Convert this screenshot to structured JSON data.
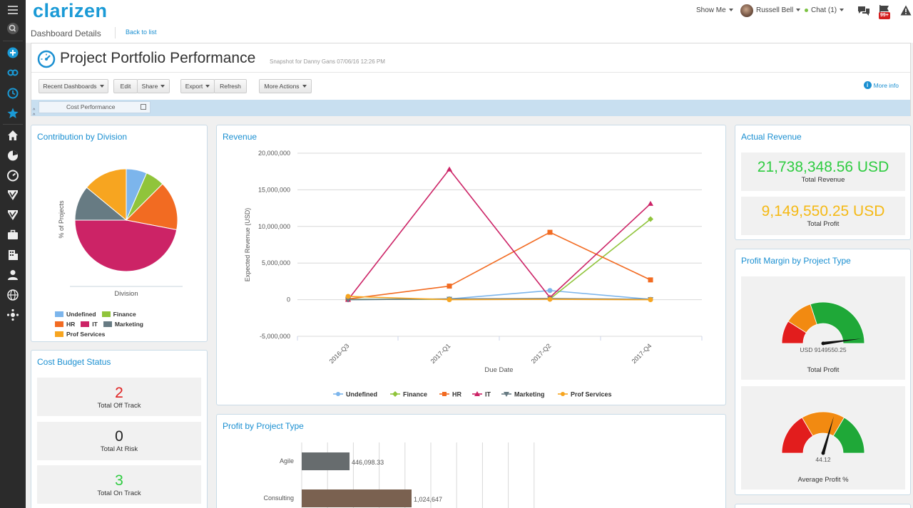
{
  "header": {
    "logo": "clarizen",
    "show_me": "Show Me",
    "user_name": "Russell Bell",
    "chat": "Chat (1)",
    "notif_count": "99+"
  },
  "subbar": {
    "section": "Dashboard Details",
    "back_link": "Back to list"
  },
  "dashboard": {
    "title": "Project Portfolio Performance",
    "snapshot": "Snapshot for Danny Gans 07/06/16 12:26 PM",
    "more_info": "More info",
    "tab": "Cost Performance"
  },
  "toolbar": {
    "recent": "Recent Dashboards",
    "edit": "Edit",
    "share": "Share",
    "export": "Export",
    "refresh": "Refresh",
    "more_actions": "More Actions"
  },
  "contribution": {
    "title": "Contribution by Division",
    "ylabel": "% of Projects",
    "xlabel": "Division",
    "legend": [
      {
        "name": "Undefined",
        "color": "#7cb5ec"
      },
      {
        "name": "Finance",
        "color": "#90c43b"
      },
      {
        "name": "HR",
        "color": "#f26b22"
      },
      {
        "name": "IT",
        "color": "#cc2366"
      },
      {
        "name": "Marketing",
        "color": "#677b83"
      },
      {
        "name": "Prof Services",
        "color": "#f7a520"
      }
    ]
  },
  "cost_budget": {
    "title": "Cost Budget Status",
    "items": [
      {
        "value": "2",
        "label": "Total Off Track",
        "color": "#e02020"
      },
      {
        "value": "0",
        "label": "Total At Risk",
        "color": "#222222"
      },
      {
        "value": "3",
        "label": "Total On Track",
        "color": "#2ecc40"
      }
    ]
  },
  "revenue": {
    "title": "Revenue"
  },
  "profit_by_type": {
    "title": "Profit by Project Type"
  },
  "actual_revenue": {
    "title": "Actual Revenue",
    "total_revenue_value": "21,738,348.56 USD",
    "total_revenue_label": "Total Revenue",
    "total_profit_value": "9,149,550.25 USD",
    "total_profit_label": "Total Profit"
  },
  "profit_margin": {
    "title": "Profit Margin by Project Type",
    "gauge1_value": "USD 9149550.25",
    "gauge1_label": "Total Profit",
    "gauge2_value": "44.12",
    "gauge2_label": "Average Profit %"
  },
  "chart_data": [
    {
      "type": "pie",
      "title": "Contribution by Division",
      "xlabel": "Division",
      "ylabel": "% of Projects",
      "categories": [
        "Undefined",
        "Finance",
        "HR",
        "IT",
        "Marketing",
        "Prof Services"
      ],
      "values": [
        6.5,
        6,
        15.5,
        47,
        11,
        14
      ],
      "colors": [
        "#7cb5ec",
        "#90c43b",
        "#f26b22",
        "#cc2366",
        "#677b83",
        "#f7a520"
      ]
    },
    {
      "type": "line",
      "title": "Revenue",
      "xlabel": "Due Date",
      "ylabel": "Expected Revenue (USD)",
      "categories": [
        "2016-Q3",
        "2017-Q1",
        "2017-Q2",
        "2017-Q4"
      ],
      "ylim": [
        -5000000,
        20000000
      ],
      "yticks": [
        "20,000,000",
        "15,000,000",
        "10,000,000",
        "5,000,000",
        "0",
        "-5,000,000"
      ],
      "ytick_values": [
        20000000,
        15000000,
        10000000,
        5000000,
        0,
        -5000000
      ],
      "legend_position": "bottom",
      "series": [
        {
          "name": "Undefined",
          "color": "#7cb5ec",
          "marker": "circle",
          "values": [
            0,
            100000,
            1250000,
            50000
          ]
        },
        {
          "name": "Finance",
          "color": "#90c43b",
          "marker": "diamond",
          "values": [
            50000,
            50000,
            100000,
            11000000
          ]
        },
        {
          "name": "HR",
          "color": "#f26b22",
          "marker": "square",
          "values": [
            100000,
            1850000,
            9200000,
            2700000
          ]
        },
        {
          "name": "IT",
          "color": "#cc2366",
          "marker": "triangle",
          "values": [
            0,
            17800000,
            300000,
            13100000
          ]
        },
        {
          "name": "Marketing",
          "color": "#677b83",
          "marker": "triangle-down",
          "values": [
            0,
            100000,
            150000,
            50000
          ]
        },
        {
          "name": "Prof Services",
          "color": "#f7a520",
          "marker": "circle",
          "values": [
            450000,
            0,
            50000,
            0
          ]
        }
      ]
    },
    {
      "type": "bar",
      "title": "Profit by Project Type",
      "orientation": "horizontal",
      "categories": [
        "Agile",
        "Consulting"
      ],
      "values": [
        446098.33,
        1024647
      ],
      "labels": [
        "446,098.33",
        "1,024,647"
      ],
      "colors": [
        "#676c6e",
        "#7a6150"
      ]
    },
    {
      "type": "gauge",
      "title": "Total Profit",
      "value_label": "USD 9149550.25",
      "bands": [
        "#e21d1d",
        "#f28a11",
        "#1fa838"
      ],
      "band_stops": [
        0,
        0.18,
        0.4,
        1
      ],
      "needle_fraction": 0.96
    },
    {
      "type": "gauge",
      "title": "Average Profit %",
      "value": 44.12,
      "bands": [
        "#e21d1d",
        "#f28a11",
        "#1fa838"
      ],
      "band_stops": [
        0,
        0.33,
        0.67,
        1
      ],
      "needle_fraction": 0.59
    }
  ]
}
